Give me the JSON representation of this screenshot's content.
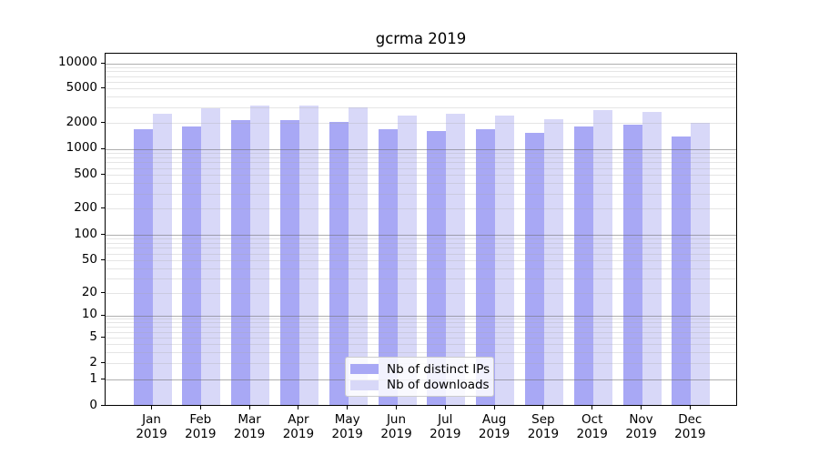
{
  "title": "gcrma 2019",
  "chart_data": {
    "type": "bar",
    "title": "gcrma 2019",
    "categories": [
      "Jan 2019",
      "Feb 2019",
      "Mar 2019",
      "Apr 2019",
      "May 2019",
      "Jun 2019",
      "Jul 2019",
      "Aug 2019",
      "Sep 2019",
      "Oct 2019",
      "Nov 2019",
      "Dec 2019"
    ],
    "x_tick_labels": [
      {
        "month": "Jan",
        "year": "2019"
      },
      {
        "month": "Feb",
        "year": "2019"
      },
      {
        "month": "Mar",
        "year": "2019"
      },
      {
        "month": "Apr",
        "year": "2019"
      },
      {
        "month": "May",
        "year": "2019"
      },
      {
        "month": "Jun",
        "year": "2019"
      },
      {
        "month": "Jul",
        "year": "2019"
      },
      {
        "month": "Aug",
        "year": "2019"
      },
      {
        "month": "Sep",
        "year": "2019"
      },
      {
        "month": "Oct",
        "year": "2019"
      },
      {
        "month": "Nov",
        "year": "2019"
      },
      {
        "month": "Dec",
        "year": "2019"
      }
    ],
    "series": [
      {
        "name": "Nb of distinct IPs",
        "color": "#a8a8f5",
        "values": [
          1680,
          1810,
          2100,
          2130,
          2030,
          1690,
          1600,
          1690,
          1510,
          1800,
          1900,
          1380
        ]
      },
      {
        "name": "Nb of downloads",
        "color": "#d8d8f8",
        "values": [
          2490,
          2900,
          3120,
          3150,
          2970,
          2390,
          2500,
          2370,
          2160,
          2760,
          2630,
          1960
        ]
      }
    ],
    "yticks": [
      0,
      1,
      2,
      5,
      10,
      20,
      50,
      100,
      200,
      500,
      1000,
      2000,
      5000,
      10000
    ],
    "ylim": [
      0,
      10000
    ],
    "yscale": "symlog",
    "grid": true,
    "legend_position": "lower center"
  },
  "colors": {
    "bar_distinct_ips": "#a8a8f5",
    "bar_downloads": "#d8d8f8",
    "grid_major": "#6e6e6e",
    "grid_minor": "#aaaaaa",
    "axis": "#000000",
    "legend_border": "#cccccc"
  }
}
